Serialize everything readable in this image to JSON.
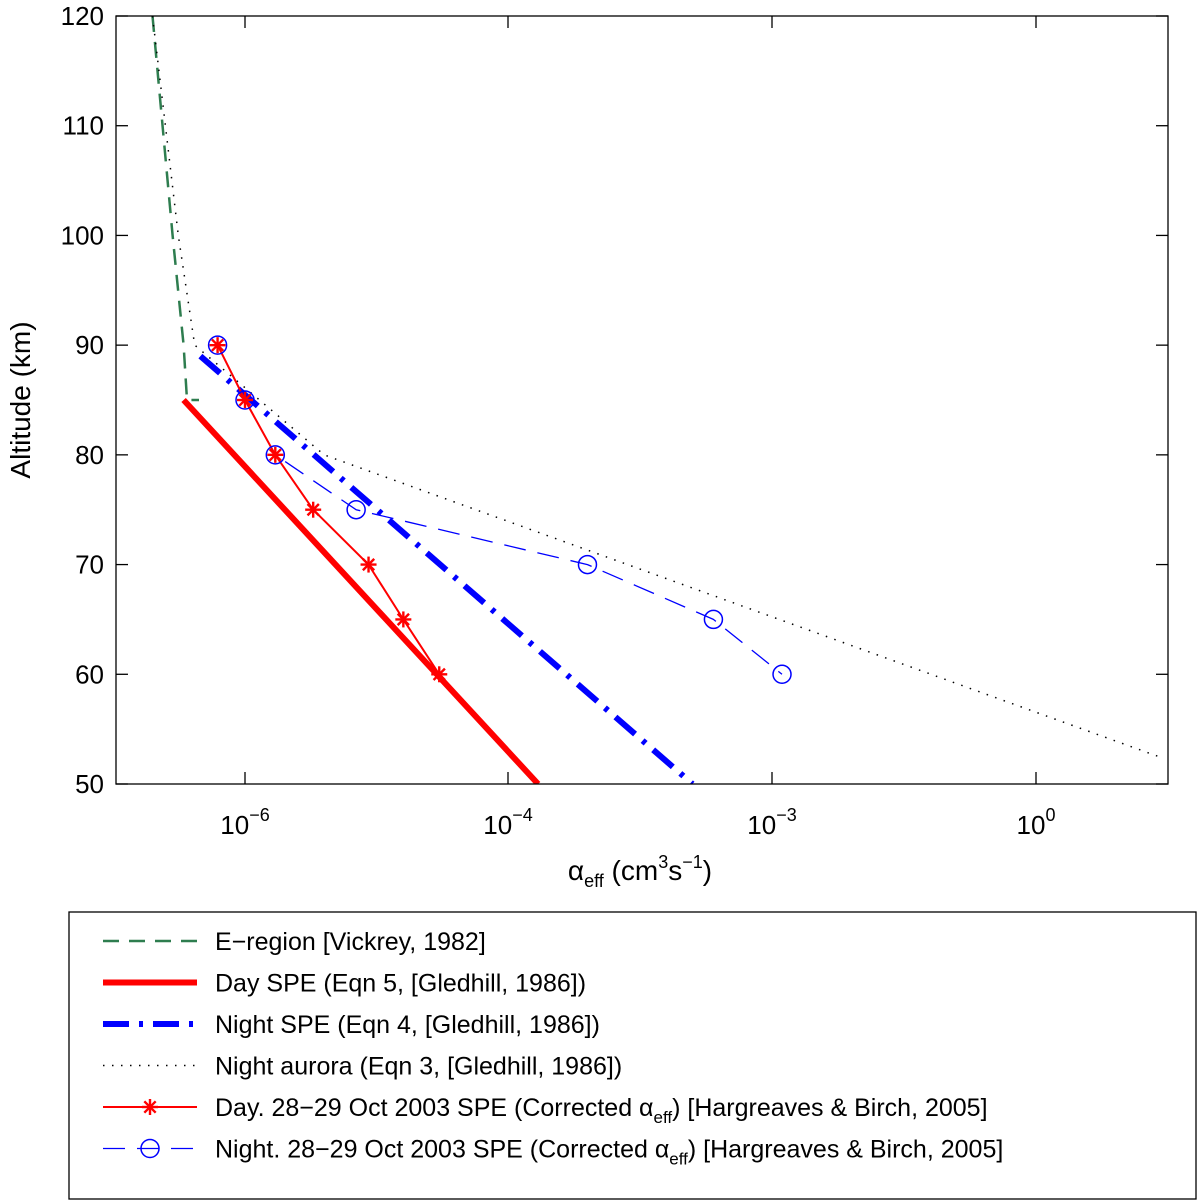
{
  "chart_data": {
    "type": "line",
    "ylabel": "Altitude (km)",
    "xlabel": {
      "base": "α",
      "sub": "eff",
      "units_prefix": " (cm",
      "sup1": "3",
      "mid": "s",
      "sup2": "−1",
      "units_suffix": ")"
    },
    "xscale": "log10 (tick spacing uneven as drawn)",
    "ylim": [
      50,
      120
    ],
    "yticks": [
      50,
      60,
      70,
      80,
      90,
      100,
      110,
      120
    ],
    "xticks": [
      {
        "value": 1e-06,
        "base": "10",
        "exp": "−6"
      },
      {
        "value": 0.0001,
        "base": "10",
        "exp": "−4"
      },
      {
        "value": 0.001,
        "base": "10",
        "exp": "−3"
      },
      {
        "value": 1,
        "base": "10",
        "exp": "0"
      }
    ],
    "series": [
      {
        "name": "E−region [Vickrey, 1982]",
        "style": "dashed",
        "color": "#2e7d4f",
        "points": [
          [
            3e-07,
            120
          ],
          [
            3.9e-07,
            100
          ],
          [
            4.5e-07,
            90
          ],
          [
            4.7e-07,
            85
          ],
          [
            5.5e-07,
            85
          ]
        ]
      },
      {
        "name": "Day SPE (Eqn 5, [Gledhill, 1986])",
        "style": "solid-thick",
        "color": "#ff0000",
        "points": [
          [
            4.5e-07,
            85
          ],
          [
            0.00013,
            50
          ]
        ]
      },
      {
        "name": "Night SPE (Eqn 4, [Gledhill, 1986])",
        "style": "dashdot-thick",
        "color": "#0000ff",
        "points": [
          [
            5.6e-07,
            89
          ],
          [
            0.0005,
            50
          ]
        ]
      },
      {
        "name": "Night aurora (Eqn 3, [Gledhill, 1986])",
        "style": "dotted",
        "color": "#000000",
        "points": [
          [
            3e-07,
            120
          ],
          [
            4.2e-07,
            100
          ],
          [
            5.2e-07,
            90
          ],
          [
            4e-06,
            80
          ],
          [
            20,
            52.5
          ]
        ]
      },
      {
        "name": "Day. 28−29 Oct 2003 SPE (Corrected α_eff) [Hargreaves & Birch, 2005]",
        "style": "solid-asterisk",
        "color": "#ff0000",
        "points": [
          [
            7e-07,
            90
          ],
          [
            1e-06,
            85
          ],
          [
            1.7e-06,
            80
          ],
          [
            3.3e-06,
            75
          ],
          [
            8.7e-06,
            70
          ],
          [
            1.6e-05,
            65
          ],
          [
            3e-05,
            60
          ]
        ]
      },
      {
        "name": "Night. 28−29 Oct 2003 SPE (Corrected α_eff) [Hargreaves & Birch, 2005]",
        "style": "dashed-circle",
        "color": "#0000ff",
        "points": [
          [
            7e-07,
            90
          ],
          [
            1e-06,
            85
          ],
          [
            1.7e-06,
            80
          ],
          [
            7e-06,
            75
          ],
          [
            0.0002,
            70
          ],
          [
            0.0006,
            65
          ],
          [
            0.0013,
            60
          ]
        ]
      }
    ],
    "legend": {
      "position": "below",
      "entries": [
        {
          "pre": "E−region [Vickrey, 1982]",
          "sub": "",
          "post": ""
        },
        {
          "pre": "Day SPE (Eqn 5, [Gledhill, 1986])",
          "sub": "",
          "post": ""
        },
        {
          "pre": "Night SPE (Eqn 4, [Gledhill, 1986])",
          "sub": "",
          "post": ""
        },
        {
          "pre": "Night aurora (Eqn 3, [Gledhill, 1986])",
          "sub": "",
          "post": ""
        },
        {
          "pre": "Day. 28−29 Oct 2003 SPE (Corrected α",
          "sub": "eff",
          "post": ") [Hargreaves & Birch, 2005]"
        },
        {
          "pre": "Night. 28−29 Oct 2003 SPE (Corrected α",
          "sub": "eff",
          "post": ") [Hargreaves & Birch, 2005]"
        }
      ]
    }
  }
}
